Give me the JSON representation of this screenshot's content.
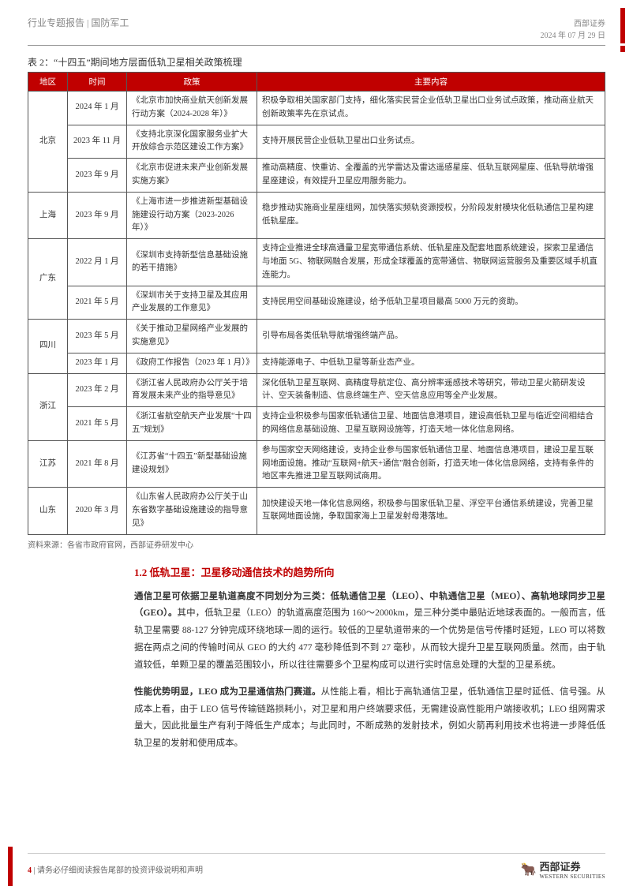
{
  "header": {
    "left": "行业专题报告 | 国防军工",
    "right_top": "西部证券",
    "right_bottom": "2024 年 07 月 29 日"
  },
  "table_title": "表 2：“十四五”期间地方层面低轨卫星相关政策梳理",
  "columns": [
    "地区",
    "时间",
    "政策",
    "主要内容"
  ],
  "rows": [
    {
      "region": "北京",
      "region_rowspan": 3,
      "time": "2024 年 1 月",
      "policy": "《北京市加快商业航天创新发展行动方案（2024-2028 年）》",
      "content": "积极争取相关国家部门支持，细化落实民营企业低轨卫星出口业务试点政策，推动商业航天创新政策率先在京试点。"
    },
    {
      "time": "2023 年 11 月",
      "policy": "《支持北京深化国家服务业扩大开放综合示范区建设工作方案》",
      "content": "支持开展民营企业低轨卫星出口业务试点。"
    },
    {
      "time": "2023 年 9 月",
      "policy": "《北京市促进未来产业创新发展实施方案》",
      "content": "推动高精度、快重访、全覆盖的光学雷达及雷达遥感星座、低轨互联网星座、低轨导航增强星座建设，有效提升卫星应用服务能力。"
    },
    {
      "region": "上海",
      "region_rowspan": 1,
      "time": "2023 年 9 月",
      "policy": "《上海市进一步推进新型基础设施建设行动方案（2023-2026 年）》",
      "content": "稳步推动实施商业星座组网，加快落实频轨资源授权，分阶段发射模块化低轨通信卫星构建低轨星座。"
    },
    {
      "region": "广东",
      "region_rowspan": 2,
      "time": "2022 月 1 月",
      "policy": "《深圳市支持新型信息基础设施的若干措施》",
      "content": "支持企业推进全球高通量卫星宽带通信系统、低轨星座及配套地面系统建设，探索卫星通信与地面 5G、物联网融合发展，形成全球覆盖的宽带通信、物联网运营服务及重要区域手机直连能力。"
    },
    {
      "time": "2021 年 5 月",
      "policy": "《深圳市关于支持卫星及其应用产业发展的工作意见》",
      "content": "支持民用空间基础设施建设，给予低轨卫星项目最高 5000 万元的资助。"
    },
    {
      "region": "四川",
      "region_rowspan": 2,
      "time": "2023 年 5 月",
      "policy": "《关于推动卫星网络产业发展的实施意见》",
      "content": "引导布局各类低轨导航增强终端产品。"
    },
    {
      "time": "2023 年 1 月",
      "policy": "《政府工作报告（2023 年 1 月）》",
      "content": "支持能源电子、中低轨卫星等新业态产业。"
    },
    {
      "region": "浙江",
      "region_rowspan": 2,
      "time": "2023 年 2 月",
      "policy": "《浙江省人民政府办公厅关于培育发展未来产业的指导意见》",
      "content": "深化低轨卫星互联网、高精度导航定位、高分辨率遥感技术等研究，带动卫星火箭研发设计、空天装备制造、信息终端生产、空天信息应用等全产业发展。"
    },
    {
      "time": "2021 年 5 月",
      "policy": "《浙江省航空航天产业发展“十四五”规划》",
      "content": "支持企业积极参与国家低轨通信卫星、地面信息港项目，建设高低轨卫星与临近空间相结合的网络信息基础设施、卫星互联网设施等，打造天地一体化信息网络。"
    },
    {
      "region": "江苏",
      "region_rowspan": 1,
      "time": "2021 年 8 月",
      "policy": "《江苏省“十四五”新型基础设施建设规划》",
      "content": "参与国家空天网络建设，支持企业参与国家低轨通信卫星、地面信息港项目，建设卫星互联网地面设施。推动“互联网+航天+通信”融合创新，打造天地一体化信息网络，支持有条件的地区率先推进卫星互联网试商用。"
    },
    {
      "region": "山东",
      "region_rowspan": 1,
      "time": "2020 年 3 月",
      "policy": "《山东省人民政府办公厅关于山东省数字基础设施建设的指导意见》",
      "content": "加快建设天地一体化信息网络，积极参与国家低轨卫星、浮空平台通信系统建设，完善卫星互联网地面设施，争取国家海上卫星发射母港落地。"
    }
  ],
  "source": "资料来源：各省市政府官网，西部证券研发中心",
  "section": {
    "heading": "1.2 低轨卫星：卫星移动通信技术的趋势所向",
    "para1_bold": "通信卫星可依据卫星轨道高度不同划分为三类：低轨通信卫星（LEO）、中轨通信卫星（MEO）、高轨地球同步卫星（GEO）。",
    "para1_rest": "其中，低轨卫星（LEO）的轨道高度范围为 160～2000km，是三种分类中最贴近地球表面的。一般而言，低轨卫星需要 88-127 分钟完成环绕地球一周的运行。较低的卫星轨道带来的一个优势是信号传播时延短，LEO 可以将数据在两点之间的传输时间从 GEO 的大约 477 毫秒降低到不到 27 毫秒，从而较大提升卫星互联网质量。然而，由于轨道较低，单颗卫星的覆盖范围较小，所以往往需要多个卫星构成可以进行实时信息处理的大型的卫星系统。",
    "para2_bold": "性能优势明显，LEO 成为卫星通信热门赛道。",
    "para2_rest": "从性能上看，相比于高轨通信卫星，低轨通信卫星时延低、信号强。从成本上看，由于 LEO 信号传输链路损耗小，对卫星和用户终端要求低，无需建设高性能用户端接收机；LEO 组网需求量大，因此批量生产有利于降低生产成本；与此同时，不断成熟的发射技术，例如火箭再利用技术也将进一步降低低轨卫星的发射和使用成本。"
  },
  "footer": {
    "page_number": "4",
    "disclaimer": "| 请务必仔细阅读报告尾部的投资评级说明和声明",
    "logo_text": "西部证券",
    "logo_sub": "WESTERN SECURITIES"
  },
  "colors": {
    "accent": "#c00000",
    "border": "#555555",
    "text": "#333333",
    "muted": "#888888"
  }
}
